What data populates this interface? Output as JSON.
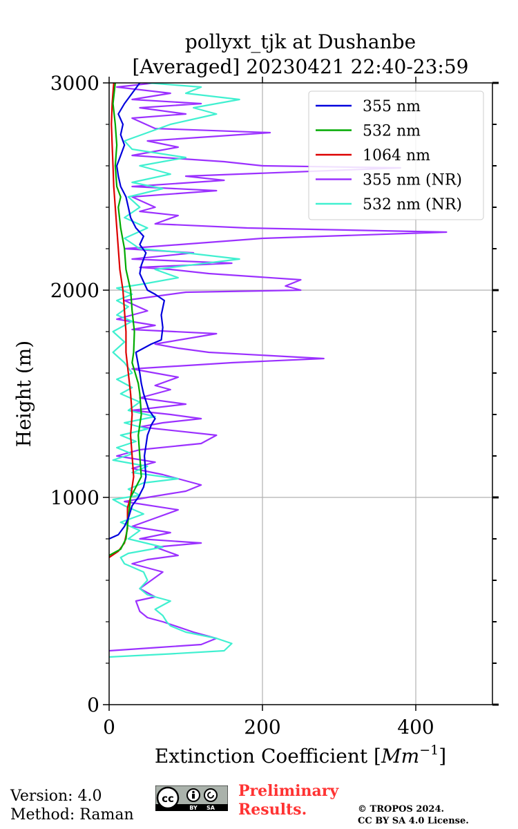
{
  "chart_data": {
    "type": "line",
    "title_line1": "pollyxt_tjk at Dushanbe",
    "title_line2": "[Averaged] 20230421 22:40-23:59",
    "xlabel": "Extinction Coefficient [",
    "xlabel_unit": "Mm",
    "xlabel_exp": "−1",
    "xlabel_close": "]",
    "ylabel": "Height (m)",
    "xlim": [
      0,
      500
    ],
    "ylim": [
      0,
      3000
    ],
    "xticks": [
      0,
      200,
      400
    ],
    "yticks": [
      0,
      1000,
      2000,
      3000
    ],
    "grid": true,
    "legend_position": "top-right",
    "series": [
      {
        "name": "355 nm",
        "color": "#0000dd",
        "points": [
          [
            0,
            800
          ],
          [
            12,
            820
          ],
          [
            20,
            860
          ],
          [
            25,
            900
          ],
          [
            30,
            960
          ],
          [
            38,
            1000
          ],
          [
            45,
            1050
          ],
          [
            48,
            1100
          ],
          [
            46,
            1200
          ],
          [
            50,
            1300
          ],
          [
            55,
            1350
          ],
          [
            60,
            1380
          ],
          [
            52,
            1420
          ],
          [
            45,
            1500
          ],
          [
            42,
            1550
          ],
          [
            40,
            1600
          ],
          [
            35,
            1700
          ],
          [
            55,
            1740
          ],
          [
            68,
            1760
          ],
          [
            70,
            1820
          ],
          [
            68,
            1880
          ],
          [
            72,
            1950
          ],
          [
            60,
            1980
          ],
          [
            50,
            2000
          ],
          [
            45,
            2040
          ],
          [
            40,
            2080
          ],
          [
            42,
            2120
          ],
          [
            48,
            2180
          ],
          [
            40,
            2220
          ],
          [
            45,
            2260
          ],
          [
            35,
            2300
          ],
          [
            28,
            2350
          ],
          [
            25,
            2400
          ],
          [
            22,
            2450
          ],
          [
            15,
            2500
          ],
          [
            12,
            2550
          ],
          [
            10,
            2600
          ],
          [
            15,
            2650
          ],
          [
            20,
            2700
          ],
          [
            15,
            2750
          ],
          [
            18,
            2800
          ],
          [
            12,
            2850
          ],
          [
            20,
            2900
          ],
          [
            30,
            2950
          ],
          [
            40,
            3000
          ]
        ]
      },
      {
        "name": "532 nm",
        "color": "#00aa00",
        "points": [
          [
            0,
            720
          ],
          [
            15,
            750
          ],
          [
            22,
            800
          ],
          [
            25,
            900
          ],
          [
            28,
            1000
          ],
          [
            35,
            1050
          ],
          [
            42,
            1100
          ],
          [
            40,
            1200
          ],
          [
            38,
            1300
          ],
          [
            42,
            1400
          ],
          [
            40,
            1500
          ],
          [
            38,
            1550
          ],
          [
            30,
            1650
          ],
          [
            32,
            1700
          ],
          [
            33,
            1800
          ],
          [
            30,
            1900
          ],
          [
            28,
            2000
          ],
          [
            22,
            2100
          ],
          [
            20,
            2200
          ],
          [
            15,
            2300
          ],
          [
            12,
            2400
          ],
          [
            15,
            2450
          ],
          [
            10,
            2500
          ],
          [
            8,
            2600
          ],
          [
            10,
            2700
          ],
          [
            8,
            2800
          ],
          [
            5,
            2900
          ],
          [
            8,
            3000
          ]
        ]
      },
      {
        "name": "1064 nm",
        "color": "#dd0000",
        "points": [
          [
            0,
            710
          ],
          [
            12,
            740
          ],
          [
            20,
            780
          ],
          [
            24,
            850
          ],
          [
            24,
            950
          ],
          [
            28,
            1000
          ],
          [
            32,
            1100
          ],
          [
            30,
            1200
          ],
          [
            28,
            1300
          ],
          [
            30,
            1400
          ],
          [
            28,
            1500
          ],
          [
            25,
            1600
          ],
          [
            22,
            1700
          ],
          [
            22,
            1800
          ],
          [
            20,
            1900
          ],
          [
            18,
            2000
          ],
          [
            14,
            2100
          ],
          [
            12,
            2200
          ],
          [
            10,
            2300
          ],
          [
            8,
            2400
          ],
          [
            6,
            2500
          ],
          [
            5,
            2600
          ],
          [
            4,
            2700
          ],
          [
            3,
            2800
          ],
          [
            4,
            2900
          ],
          [
            6,
            3000
          ]
        ]
      },
      {
        "name": "355 nm (NR)",
        "color": "#9b30ff",
        "points": [
          [
            0,
            260
          ],
          [
            60,
            275
          ],
          [
            120,
            290
          ],
          [
            140,
            320
          ],
          [
            110,
            350
          ],
          [
            70,
            400
          ],
          [
            50,
            420
          ],
          [
            40,
            450
          ],
          [
            35,
            500
          ],
          [
            60,
            520
          ],
          [
            40,
            560
          ],
          [
            55,
            600
          ],
          [
            70,
            640
          ],
          [
            30,
            680
          ],
          [
            50,
            700
          ],
          [
            90,
            720
          ],
          [
            60,
            760
          ],
          [
            120,
            780
          ],
          [
            40,
            800
          ],
          [
            80,
            830
          ],
          [
            30,
            860
          ],
          [
            60,
            900
          ],
          [
            90,
            940
          ],
          [
            20,
            980
          ],
          [
            50,
            1000
          ],
          [
            100,
            1030
          ],
          [
            120,
            1060
          ],
          [
            90,
            1090
          ],
          [
            70,
            1110
          ],
          [
            30,
            1140
          ],
          [
            60,
            1170
          ],
          [
            10,
            1200
          ],
          [
            40,
            1230
          ],
          [
            120,
            1260
          ],
          [
            140,
            1300
          ],
          [
            40,
            1340
          ],
          [
            70,
            1360
          ],
          [
            120,
            1380
          ],
          [
            80,
            1400
          ],
          [
            30,
            1420
          ],
          [
            100,
            1450
          ],
          [
            40,
            1480
          ],
          [
            80,
            1520
          ],
          [
            60,
            1540
          ],
          [
            90,
            1580
          ],
          [
            30,
            1620
          ],
          [
            160,
            1650
          ],
          [
            280,
            1670
          ],
          [
            130,
            1700
          ],
          [
            90,
            1720
          ],
          [
            60,
            1740
          ],
          [
            140,
            1790
          ],
          [
            30,
            1810
          ],
          [
            60,
            1830
          ],
          [
            10,
            1860
          ],
          [
            50,
            1900
          ],
          [
            20,
            1950
          ],
          [
            100,
            1990
          ],
          [
            250,
            2000
          ],
          [
            230,
            2020
          ],
          [
            250,
            2050
          ],
          [
            130,
            2080
          ],
          [
            80,
            2100
          ],
          [
            40,
            2110
          ],
          [
            160,
            2130
          ],
          [
            30,
            2150
          ],
          [
            110,
            2180
          ],
          [
            20,
            2200
          ],
          [
            200,
            2250
          ],
          [
            440,
            2280
          ],
          [
            180,
            2300
          ],
          [
            60,
            2320
          ],
          [
            90,
            2360
          ],
          [
            40,
            2380
          ],
          [
            60,
            2400
          ],
          [
            30,
            2450
          ],
          [
            140,
            2480
          ],
          [
            30,
            2500
          ],
          [
            150,
            2530
          ],
          [
            100,
            2550
          ],
          [
            380,
            2590
          ],
          [
            200,
            2600
          ],
          [
            150,
            2620
          ],
          [
            30,
            2650
          ],
          [
            90,
            2690
          ],
          [
            50,
            2720
          ],
          [
            210,
            2760
          ],
          [
            60,
            2780
          ],
          [
            30,
            2830
          ],
          [
            100,
            2850
          ],
          [
            40,
            2880
          ],
          [
            120,
            2900
          ],
          [
            30,
            2920
          ],
          [
            80,
            2950
          ],
          [
            10,
            2980
          ],
          [
            60,
            3000
          ]
        ]
      },
      {
        "name": "532 nm (NR)",
        "color": "#40f0d0",
        "points": [
          [
            0,
            230
          ],
          [
            80,
            245
          ],
          [
            150,
            260
          ],
          [
            160,
            295
          ],
          [
            140,
            320
          ],
          [
            100,
            350
          ],
          [
            80,
            380
          ],
          [
            75,
            400
          ],
          [
            70,
            430
          ],
          [
            60,
            460
          ],
          [
            80,
            500
          ],
          [
            50,
            530
          ],
          [
            40,
            560
          ],
          [
            50,
            600
          ],
          [
            45,
            640
          ],
          [
            20,
            680
          ],
          [
            15,
            710
          ],
          [
            25,
            730
          ],
          [
            70,
            760
          ],
          [
            25,
            800
          ],
          [
            40,
            840
          ],
          [
            15,
            880
          ],
          [
            45,
            920
          ],
          [
            20,
            960
          ],
          [
            5,
            990
          ],
          [
            40,
            1010
          ],
          [
            25,
            1040
          ],
          [
            45,
            1070
          ],
          [
            90,
            1090
          ],
          [
            30,
            1120
          ],
          [
            50,
            1150
          ],
          [
            5,
            1180
          ],
          [
            30,
            1210
          ],
          [
            10,
            1240
          ],
          [
            35,
            1270
          ],
          [
            15,
            1300
          ],
          [
            50,
            1330
          ],
          [
            20,
            1360
          ],
          [
            60,
            1390
          ],
          [
            25,
            1420
          ],
          [
            40,
            1460
          ],
          [
            15,
            1500
          ],
          [
            30,
            1530
          ],
          [
            10,
            1570
          ],
          [
            30,
            1600
          ],
          [
            20,
            1650
          ],
          [
            5,
            1700
          ],
          [
            20,
            1750
          ],
          [
            5,
            1800
          ],
          [
            30,
            1850
          ],
          [
            10,
            1880
          ],
          [
            25,
            1920
          ],
          [
            10,
            1950
          ],
          [
            30,
            1980
          ],
          [
            10,
            2010
          ],
          [
            45,
            2030
          ],
          [
            90,
            2060
          ],
          [
            60,
            2100
          ],
          [
            170,
            2150
          ],
          [
            100,
            2180
          ],
          [
            40,
            2200
          ],
          [
            20,
            2250
          ],
          [
            50,
            2300
          ],
          [
            20,
            2350
          ],
          [
            40,
            2400
          ],
          [
            25,
            2450
          ],
          [
            70,
            2490
          ],
          [
            30,
            2520
          ],
          [
            80,
            2560
          ],
          [
            40,
            2600
          ],
          [
            100,
            2640
          ],
          [
            30,
            2680
          ],
          [
            20,
            2720
          ],
          [
            50,
            2760
          ],
          [
            80,
            2800
          ],
          [
            140,
            2850
          ],
          [
            110,
            2880
          ],
          [
            170,
            2920
          ],
          [
            100,
            2950
          ],
          [
            120,
            2980
          ],
          [
            50,
            3000
          ]
        ]
      }
    ]
  },
  "footer": {
    "version": "Version: 4.0",
    "method": "Method: Raman",
    "prelim_line1": "Preliminary",
    "prelim_line2": "Results.",
    "copyright_line1": "© TROPOS 2024.",
    "copyright_line2": "CC BY SA 4.0 License.",
    "badge_cc": "cc",
    "badge_by": "BY",
    "badge_sa": "SA"
  }
}
